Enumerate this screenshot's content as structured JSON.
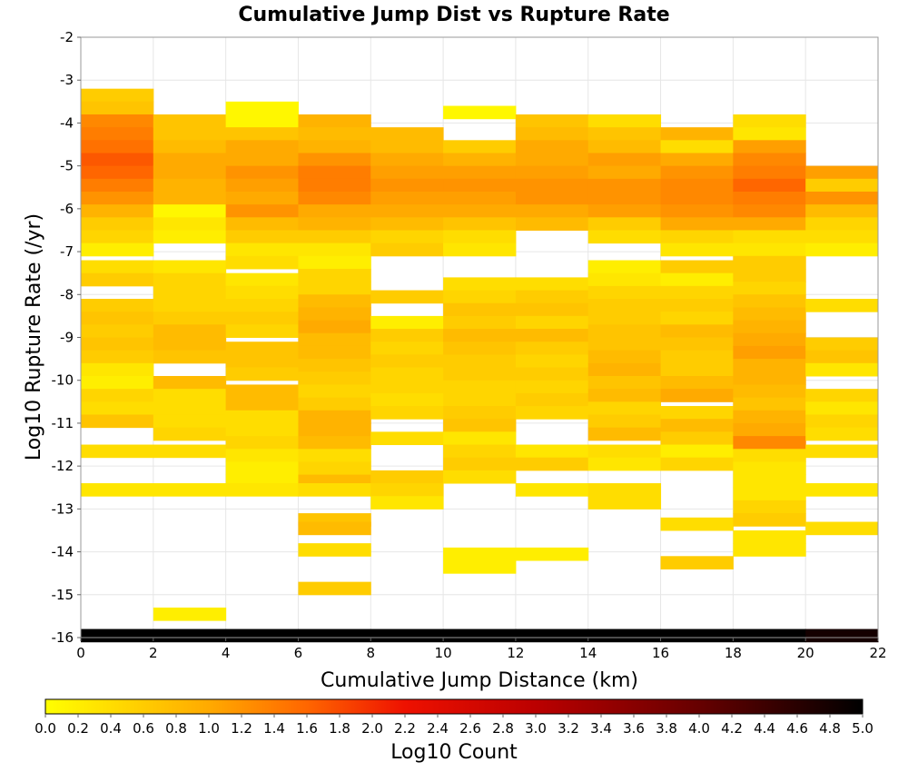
{
  "chart_data": {
    "type": "heatmap",
    "title": "Cumulative Jump Dist vs Rupture Rate",
    "xlabel": "Cumulative Jump Distance (km)",
    "ylabel": "Log10 Rupture Rate (/yr)",
    "xlim": [
      0,
      22
    ],
    "ylim": [
      -16,
      -2
    ],
    "x_ticks": [
      0,
      2,
      4,
      6,
      8,
      10,
      12,
      14,
      16,
      18,
      20,
      22
    ],
    "y_ticks": [
      -2,
      -3,
      -4,
      -5,
      -6,
      -7,
      -8,
      -9,
      -10,
      -11,
      -12,
      -13,
      -14,
      -15,
      -16
    ],
    "grid": true,
    "x_bin_width": 2,
    "y_bin_height": 0.3,
    "cells": [
      [
        0,
        -3.35,
        0.6
      ],
      [
        0,
        -3.65,
        0.7
      ],
      [
        0,
        -3.95,
        1.3
      ],
      [
        0,
        -4.25,
        1.4
      ],
      [
        0,
        -4.55,
        1.5
      ],
      [
        0,
        -4.85,
        1.7
      ],
      [
        0,
        -5.15,
        1.6
      ],
      [
        0,
        -5.45,
        1.4
      ],
      [
        0,
        -5.75,
        1.2
      ],
      [
        0,
        -6.05,
        0.9
      ],
      [
        0,
        -6.35,
        0.6
      ],
      [
        0,
        -6.65,
        0.5
      ],
      [
        0,
        -6.95,
        0.2
      ],
      [
        0,
        -7.35,
        0.4
      ],
      [
        0,
        -7.65,
        0.6
      ],
      [
        0,
        -8.25,
        0.6
      ],
      [
        0,
        -8.55,
        0.7
      ],
      [
        0,
        -8.85,
        0.6
      ],
      [
        0,
        -9.15,
        0.7
      ],
      [
        0,
        -9.45,
        0.6
      ],
      [
        0,
        -9.75,
        0.3
      ],
      [
        0,
        -10.05,
        0.2
      ],
      [
        0,
        -10.35,
        0.5
      ],
      [
        0,
        -10.65,
        0.4
      ],
      [
        0,
        -10.95,
        0.7
      ],
      [
        0,
        -11.65,
        0.4
      ],
      [
        0,
        -12.55,
        0.3
      ],
      [
        0,
        -15.95,
        5.0
      ],
      [
        2,
        -3.95,
        0.7
      ],
      [
        2,
        -4.25,
        0.7
      ],
      [
        2,
        -4.55,
        0.8
      ],
      [
        2,
        -4.85,
        1.0
      ],
      [
        2,
        -5.15,
        1.0
      ],
      [
        2,
        -5.45,
        0.9
      ],
      [
        2,
        -5.75,
        0.9
      ],
      [
        2,
        -6.05,
        0.1
      ],
      [
        2,
        -6.35,
        0.3
      ],
      [
        2,
        -6.65,
        0.2
      ],
      [
        2,
        -7.35,
        0.3
      ],
      [
        2,
        -7.65,
        0.5
      ],
      [
        2,
        -7.95,
        0.5
      ],
      [
        2,
        -8.25,
        0.5
      ],
      [
        2,
        -8.55,
        0.6
      ],
      [
        2,
        -8.85,
        0.8
      ],
      [
        2,
        -9.15,
        0.8
      ],
      [
        2,
        -9.45,
        0.7
      ],
      [
        2,
        -10.05,
        0.8
      ],
      [
        2,
        -10.35,
        0.4
      ],
      [
        2,
        -10.65,
        0.4
      ],
      [
        2,
        -10.95,
        0.4
      ],
      [
        2,
        -11.25,
        0.5
      ],
      [
        2,
        -11.65,
        0.4
      ],
      [
        2,
        -12.55,
        0.3
      ],
      [
        2,
        -15.45,
        0.2
      ],
      [
        2,
        -15.95,
        5.0
      ],
      [
        4,
        -3.65,
        0.1
      ],
      [
        4,
        -3.95,
        0.1
      ],
      [
        4,
        -4.25,
        0.7
      ],
      [
        4,
        -4.55,
        1.0
      ],
      [
        4,
        -4.85,
        1.0
      ],
      [
        4,
        -5.15,
        1.2
      ],
      [
        4,
        -5.45,
        1.1
      ],
      [
        4,
        -5.75,
        1.0
      ],
      [
        4,
        -6.05,
        1.2
      ],
      [
        4,
        -6.35,
        0.8
      ],
      [
        4,
        -6.65,
        0.6
      ],
      [
        4,
        -6.95,
        0.3
      ],
      [
        4,
        -7.25,
        0.4
      ],
      [
        4,
        -7.65,
        0.3
      ],
      [
        4,
        -7.95,
        0.4
      ],
      [
        4,
        -8.25,
        0.5
      ],
      [
        4,
        -8.55,
        0.6
      ],
      [
        4,
        -8.85,
        0.5
      ],
      [
        4,
        -9.25,
        0.7
      ],
      [
        4,
        -9.55,
        0.7
      ],
      [
        4,
        -9.85,
        0.6
      ],
      [
        4,
        -10.25,
        0.8
      ],
      [
        4,
        -10.55,
        0.8
      ],
      [
        4,
        -10.85,
        0.4
      ],
      [
        4,
        -11.15,
        0.4
      ],
      [
        4,
        -11.45,
        0.5
      ],
      [
        4,
        -11.75,
        0.3
      ],
      [
        4,
        -12.05,
        0.2
      ],
      [
        4,
        -12.35,
        0.2
      ],
      [
        4,
        -12.55,
        0.3
      ],
      [
        4,
        -15.95,
        5.0
      ],
      [
        6,
        -3.95,
        0.9
      ],
      [
        6,
        -4.25,
        0.8
      ],
      [
        6,
        -4.55,
        0.9
      ],
      [
        6,
        -4.85,
        1.2
      ],
      [
        6,
        -5.15,
        1.4
      ],
      [
        6,
        -5.45,
        1.4
      ],
      [
        6,
        -5.75,
        1.3
      ],
      [
        6,
        -6.05,
        1.0
      ],
      [
        6,
        -6.35,
        0.9
      ],
      [
        6,
        -6.65,
        0.6
      ],
      [
        6,
        -6.95,
        0.3
      ],
      [
        6,
        -7.25,
        0.2
      ],
      [
        6,
        -7.55,
        0.5
      ],
      [
        6,
        -7.85,
        0.5
      ],
      [
        6,
        -8.15,
        0.8
      ],
      [
        6,
        -8.45,
        0.9
      ],
      [
        6,
        -8.75,
        1.0
      ],
      [
        6,
        -9.05,
        0.8
      ],
      [
        6,
        -9.35,
        0.8
      ],
      [
        6,
        -9.65,
        0.7
      ],
      [
        6,
        -9.95,
        0.6
      ],
      [
        6,
        -10.25,
        0.5
      ],
      [
        6,
        -10.55,
        0.6
      ],
      [
        6,
        -10.85,
        0.9
      ],
      [
        6,
        -11.15,
        0.9
      ],
      [
        6,
        -11.45,
        0.8
      ],
      [
        6,
        -11.75,
        0.4
      ],
      [
        6,
        -12.05,
        0.5
      ],
      [
        6,
        -12.35,
        0.8
      ],
      [
        6,
        -12.55,
        0.4
      ],
      [
        6,
        -13.25,
        0.7
      ],
      [
        6,
        -13.45,
        0.8
      ],
      [
        6,
        -13.95,
        0.4
      ],
      [
        6,
        -14.85,
        0.6
      ],
      [
        6,
        -15.95,
        5.0
      ],
      [
        8,
        -4.25,
        0.8
      ],
      [
        8,
        -4.55,
        0.8
      ],
      [
        8,
        -4.85,
        1.0
      ],
      [
        8,
        -5.15,
        1.1
      ],
      [
        8,
        -5.45,
        1.2
      ],
      [
        8,
        -5.75,
        1.1
      ],
      [
        8,
        -6.05,
        1.0
      ],
      [
        8,
        -6.35,
        0.8
      ],
      [
        8,
        -6.65,
        0.5
      ],
      [
        8,
        -6.95,
        0.6
      ],
      [
        8,
        -8.05,
        0.6
      ],
      [
        8,
        -8.65,
        0.2
      ],
      [
        8,
        -8.95,
        0.6
      ],
      [
        8,
        -9.25,
        0.5
      ],
      [
        8,
        -9.55,
        0.6
      ],
      [
        8,
        -9.85,
        0.5
      ],
      [
        8,
        -10.15,
        0.5
      ],
      [
        8,
        -10.45,
        0.4
      ],
      [
        8,
        -10.75,
        0.5
      ],
      [
        8,
        -11.35,
        0.4
      ],
      [
        8,
        -12.25,
        0.6
      ],
      [
        8,
        -12.55,
        0.5
      ],
      [
        8,
        -12.85,
        0.3
      ],
      [
        8,
        -15.95,
        5.0
      ],
      [
        10,
        -3.75,
        0.1
      ],
      [
        10,
        -4.55,
        0.6
      ],
      [
        10,
        -4.85,
        0.9
      ],
      [
        10,
        -5.15,
        1.1
      ],
      [
        10,
        -5.45,
        1.2
      ],
      [
        10,
        -5.75,
        1.1
      ],
      [
        10,
        -6.05,
        1.0
      ],
      [
        10,
        -6.35,
        0.7
      ],
      [
        10,
        -6.65,
        0.4
      ],
      [
        10,
        -6.95,
        0.3
      ],
      [
        10,
        -7.75,
        0.4
      ],
      [
        10,
        -8.05,
        0.5
      ],
      [
        10,
        -8.35,
        0.7
      ],
      [
        10,
        -8.65,
        0.6
      ],
      [
        10,
        -8.95,
        0.8
      ],
      [
        10,
        -9.25,
        0.7
      ],
      [
        10,
        -9.55,
        0.6
      ],
      [
        10,
        -9.85,
        0.6
      ],
      [
        10,
        -10.15,
        0.5
      ],
      [
        10,
        -10.45,
        0.5
      ],
      [
        10,
        -10.75,
        0.6
      ],
      [
        10,
        -11.05,
        0.7
      ],
      [
        10,
        -11.35,
        0.3
      ],
      [
        10,
        -11.65,
        0.5
      ],
      [
        10,
        -11.95,
        0.6
      ],
      [
        10,
        -12.25,
        0.4
      ],
      [
        10,
        -14.05,
        0.2
      ],
      [
        10,
        -14.35,
        0.2
      ],
      [
        10,
        -15.95,
        5.0
      ],
      [
        12,
        -3.95,
        0.7
      ],
      [
        12,
        -4.25,
        0.8
      ],
      [
        12,
        -4.55,
        1.0
      ],
      [
        12,
        -4.85,
        1.0
      ],
      [
        12,
        -5.15,
        1.1
      ],
      [
        12,
        -5.45,
        1.2
      ],
      [
        12,
        -5.75,
        1.2
      ],
      [
        12,
        -6.05,
        1.0
      ],
      [
        12,
        -6.35,
        0.8
      ],
      [
        12,
        -7.75,
        0.4
      ],
      [
        12,
        -8.05,
        0.6
      ],
      [
        12,
        -8.35,
        0.7
      ],
      [
        12,
        -8.65,
        0.5
      ],
      [
        12,
        -8.95,
        0.8
      ],
      [
        12,
        -9.25,
        0.6
      ],
      [
        12,
        -9.55,
        0.5
      ],
      [
        12,
        -9.85,
        0.6
      ],
      [
        12,
        -10.15,
        0.5
      ],
      [
        12,
        -10.45,
        0.6
      ],
      [
        12,
        -10.75,
        0.5
      ],
      [
        12,
        -11.65,
        0.3
      ],
      [
        12,
        -11.95,
        0.6
      ],
      [
        12,
        -12.55,
        0.3
      ],
      [
        12,
        -14.05,
        0.2
      ],
      [
        12,
        -15.95,
        5.0
      ],
      [
        14,
        -3.95,
        0.4
      ],
      [
        14,
        -4.25,
        0.7
      ],
      [
        14,
        -4.55,
        0.8
      ],
      [
        14,
        -4.85,
        1.1
      ],
      [
        14,
        -5.15,
        1.0
      ],
      [
        14,
        -5.45,
        1.2
      ],
      [
        14,
        -5.75,
        1.2
      ],
      [
        14,
        -6.05,
        1.1
      ],
      [
        14,
        -6.35,
        0.6
      ],
      [
        14,
        -6.65,
        0.4
      ],
      [
        14,
        -7.35,
        0.2
      ],
      [
        14,
        -7.65,
        0.3
      ],
      [
        14,
        -7.95,
        0.5
      ],
      [
        14,
        -8.25,
        0.6
      ],
      [
        14,
        -8.55,
        0.6
      ],
      [
        14,
        -8.85,
        0.7
      ],
      [
        14,
        -9.15,
        0.7
      ],
      [
        14,
        -9.45,
        0.8
      ],
      [
        14,
        -9.75,
        0.9
      ],
      [
        14,
        -10.05,
        0.7
      ],
      [
        14,
        -10.35,
        0.8
      ],
      [
        14,
        -10.65,
        0.5
      ],
      [
        14,
        -10.95,
        0.6
      ],
      [
        14,
        -11.25,
        0.8
      ],
      [
        14,
        -11.65,
        0.4
      ],
      [
        14,
        -11.95,
        0.3
      ],
      [
        14,
        -12.55,
        0.4
      ],
      [
        14,
        -12.85,
        0.4
      ],
      [
        14,
        -15.95,
        5.0
      ],
      [
        16,
        -4.25,
        0.9
      ],
      [
        16,
        -4.55,
        0.4
      ],
      [
        16,
        -4.85,
        1.0
      ],
      [
        16,
        -5.15,
        1.2
      ],
      [
        16,
        -5.45,
        1.3
      ],
      [
        16,
        -5.75,
        1.3
      ],
      [
        16,
        -6.05,
        1.2
      ],
      [
        16,
        -6.35,
        1.0
      ],
      [
        16,
        -6.65,
        0.5
      ],
      [
        16,
        -6.95,
        0.3
      ],
      [
        16,
        -7.35,
        0.6
      ],
      [
        16,
        -7.65,
        0.2
      ],
      [
        16,
        -7.95,
        0.5
      ],
      [
        16,
        -8.25,
        0.6
      ],
      [
        16,
        -8.55,
        0.5
      ],
      [
        16,
        -8.85,
        0.8
      ],
      [
        16,
        -9.15,
        0.7
      ],
      [
        16,
        -9.45,
        0.6
      ],
      [
        16,
        -9.75,
        0.6
      ],
      [
        16,
        -10.05,
        0.8
      ],
      [
        16,
        -10.35,
        1.0
      ],
      [
        16,
        -10.75,
        0.5
      ],
      [
        16,
        -11.05,
        0.8
      ],
      [
        16,
        -11.35,
        0.6
      ],
      [
        16,
        -11.65,
        0.2
      ],
      [
        16,
        -11.95,
        0.5
      ],
      [
        16,
        -13.35,
        0.4
      ],
      [
        16,
        -14.25,
        0.6
      ],
      [
        16,
        -15.95,
        5.0
      ],
      [
        18,
        -3.95,
        0.4
      ],
      [
        18,
        -4.25,
        0.3
      ],
      [
        18,
        -4.55,
        1.1
      ],
      [
        18,
        -4.85,
        1.3
      ],
      [
        18,
        -5.15,
        1.4
      ],
      [
        18,
        -5.45,
        1.6
      ],
      [
        18,
        -5.75,
        1.4
      ],
      [
        18,
        -6.05,
        1.3
      ],
      [
        18,
        -6.35,
        1.0
      ],
      [
        18,
        -6.65,
        0.4
      ],
      [
        18,
        -6.95,
        0.3
      ],
      [
        18,
        -7.25,
        0.6
      ],
      [
        18,
        -7.55,
        0.6
      ],
      [
        18,
        -7.85,
        0.5
      ],
      [
        18,
        -8.15,
        0.7
      ],
      [
        18,
        -8.45,
        0.8
      ],
      [
        18,
        -8.75,
        0.9
      ],
      [
        18,
        -9.05,
        1.0
      ],
      [
        18,
        -9.35,
        1.1
      ],
      [
        18,
        -9.65,
        0.9
      ],
      [
        18,
        -9.95,
        0.9
      ],
      [
        18,
        -10.25,
        0.8
      ],
      [
        18,
        -10.55,
        0.7
      ],
      [
        18,
        -10.85,
        0.9
      ],
      [
        18,
        -11.15,
        1.0
      ],
      [
        18,
        -11.45,
        1.3
      ],
      [
        18,
        -11.75,
        0.4
      ],
      [
        18,
        -12.05,
        0.3
      ],
      [
        18,
        -12.35,
        0.3
      ],
      [
        18,
        -12.65,
        0.3
      ],
      [
        18,
        -12.95,
        0.5
      ],
      [
        18,
        -13.25,
        0.6
      ],
      [
        18,
        -13.65,
        0.3
      ],
      [
        18,
        -13.95,
        0.3
      ],
      [
        18,
        -15.95,
        5.0
      ],
      [
        20,
        -5.15,
        1.1
      ],
      [
        20,
        -5.45,
        0.6
      ],
      [
        20,
        -5.75,
        1.2
      ],
      [
        20,
        -6.05,
        0.8
      ],
      [
        20,
        -6.35,
        0.5
      ],
      [
        20,
        -6.65,
        0.4
      ],
      [
        20,
        -6.95,
        0.2
      ],
      [
        20,
        -8.25,
        0.4
      ],
      [
        20,
        -9.15,
        0.6
      ],
      [
        20,
        -9.45,
        0.7
      ],
      [
        20,
        -9.75,
        0.3
      ],
      [
        20,
        -10.35,
        0.5
      ],
      [
        20,
        -10.65,
        0.3
      ],
      [
        20,
        -10.95,
        0.5
      ],
      [
        20,
        -11.25,
        0.4
      ],
      [
        20,
        -11.65,
        0.4
      ],
      [
        20,
        -12.55,
        0.3
      ],
      [
        20,
        -13.45,
        0.4
      ],
      [
        20,
        -15.95,
        4.8
      ]
    ],
    "colorbar": {
      "label": "Log10 Count",
      "min": 0.0,
      "max": 5.0,
      "ticks": [
        "0.0",
        "0.2",
        "0.4",
        "0.6",
        "0.8",
        "1.0",
        "1.2",
        "1.4",
        "1.6",
        "1.8",
        "2.0",
        "2.2",
        "2.4",
        "2.6",
        "2.8",
        "3.0",
        "3.2",
        "3.4",
        "3.6",
        "3.8",
        "4.0",
        "4.2",
        "4.4",
        "4.6",
        "4.8",
        "5.0"
      ],
      "stops": [
        [
          0.0,
          "#ffff00"
        ],
        [
          1.0,
          "#ffaa00"
        ],
        [
          1.6,
          "#ff6600"
        ],
        [
          2.2,
          "#ee1100"
        ],
        [
          3.0,
          "#bb0000"
        ],
        [
          4.0,
          "#660000"
        ],
        [
          5.0,
          "#000000"
        ]
      ]
    }
  }
}
